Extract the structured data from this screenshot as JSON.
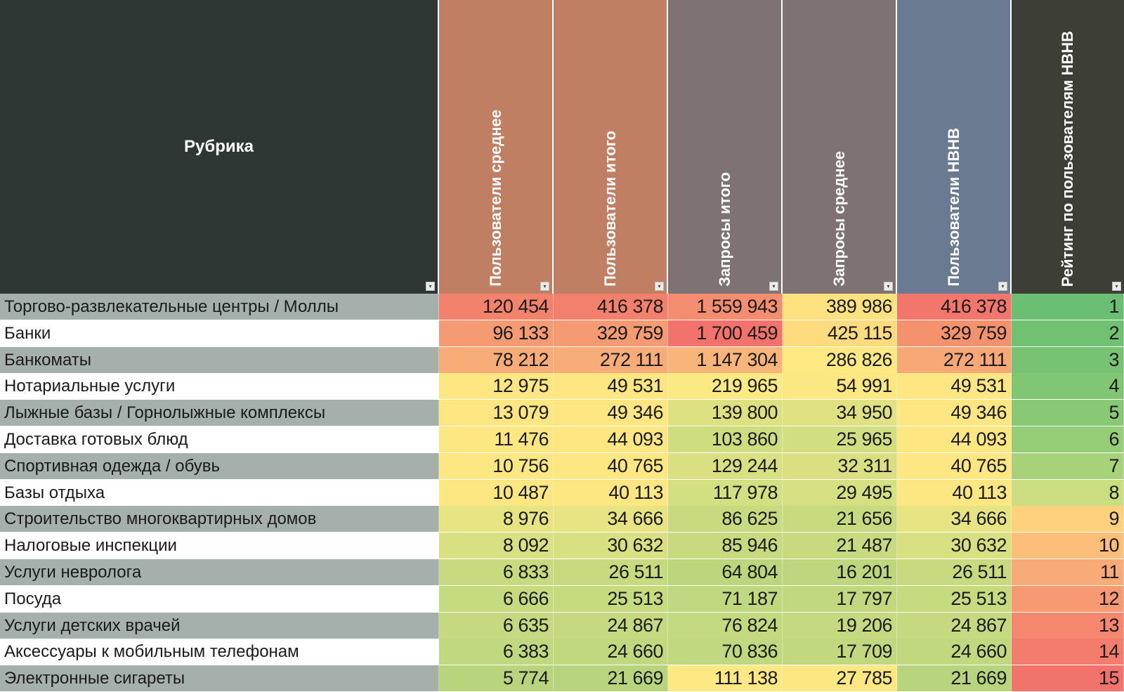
{
  "header": {
    "rubric": "Рубрика",
    "columns": [
      "Пользователи среднее",
      "Пользователи итого",
      "Запросы итого",
      "Запросы среднее",
      "Пользователи НВНВ",
      "Рейтинг по пользователям НВНВ"
    ]
  },
  "colors": {
    "header_first": "#2f3735",
    "header_cols": [
      "#c07e63",
      "#c07e63",
      "#7e7275",
      "#7e7275",
      "#6a7b91",
      "#3d3f36"
    ],
    "row_name_odd": "#a5b0ac",
    "row_name_even": "#ffffff"
  },
  "rows": [
    {
      "name": "Торгово-развлекательные центры / Моллы",
      "values": [
        "120 454",
        "416 378",
        "1 559 943",
        "389 986",
        "416 378",
        "1"
      ],
      "colors": [
        "#f3826d",
        "#f3806c",
        "#f58d70",
        "#fde27f",
        "#f2766c",
        "#6bbf73"
      ]
    },
    {
      "name": "Банки",
      "values": [
        "96 133",
        "329 759",
        "1 700 459",
        "425 115",
        "329 759",
        "2"
      ],
      "colors": [
        "#f59b73",
        "#f59b74",
        "#f2736b",
        "#fddb7e",
        "#f4926e",
        "#71c172"
      ]
    },
    {
      "name": "Банкоматы",
      "values": [
        "78 212",
        "272 111",
        "1 147 304",
        "286 826",
        "272 111",
        "3"
      ],
      "colors": [
        "#f8ad78",
        "#f8ac78",
        "#f9b47a",
        "#fee982",
        "#f8a776",
        "#78c373"
      ]
    },
    {
      "name": "Нотариальные услуги",
      "values": [
        "12 975",
        "49 531",
        "219 965",
        "54 991",
        "49 531",
        "4"
      ],
      "colors": [
        "#fee683",
        "#fee683",
        "#fbea83",
        "#fbe883",
        "#fee683",
        "#80c674"
      ]
    },
    {
      "name": "Лыжные базы / Горнолыжные комплексы",
      "values": [
        "13 079",
        "49 346",
        "139 800",
        "34 950",
        "49 346",
        "5"
      ],
      "colors": [
        "#fee683",
        "#fee683",
        "#dde182",
        "#dfe182",
        "#fee683",
        "#89c975"
      ]
    },
    {
      "name": "Доставка готовых блюд",
      "values": [
        "11 476",
        "44 093",
        "103 860",
        "25 965",
        "44 093",
        "6"
      ],
      "colors": [
        "#fee783",
        "#fee783",
        "#cfdd81",
        "#d2de81",
        "#fee783",
        "#96cd77"
      ]
    },
    {
      "name": "Спортивная одежда / обувь",
      "values": [
        "10 756",
        "40 765",
        "129 244",
        "32 311",
        "40 765",
        "7"
      ],
      "colors": [
        "#fde783",
        "#fde783",
        "#d8e082",
        "#dae082",
        "#fde783",
        "#a8d27a"
      ]
    },
    {
      "name": "Базы отдыха",
      "values": [
        "10 487",
        "40 113",
        "117 978",
        "29 495",
        "40 113",
        "8"
      ],
      "colors": [
        "#fde783",
        "#fde783",
        "#d4df82",
        "#d6df82",
        "#fde783",
        "#cadd80"
      ]
    },
    {
      "name": "Строительство многоквартирных домов",
      "values": [
        "8 976",
        "34 666",
        "86 625",
        "21 656",
        "34 666",
        "9"
      ],
      "colors": [
        "#e6e483",
        "#e6e483",
        "#c8da80",
        "#c8da80",
        "#e6e483",
        "#fdd17d"
      ]
    },
    {
      "name": "Налоговые инспекции",
      "values": [
        "8 092",
        "30 632",
        "85 946",
        "21 487",
        "30 632",
        "10"
      ],
      "colors": [
        "#d9e082",
        "#d9e082",
        "#c7da80",
        "#c7da80",
        "#d9e082",
        "#fcbf7a"
      ]
    },
    {
      "name": "Услуги невролога",
      "values": [
        "6 833",
        "26 511",
        "64 804",
        "16 201",
        "26 511",
        "11"
      ],
      "colors": [
        "#c8da80",
        "#c8da80",
        "#bcd67e",
        "#bed77f",
        "#c8da80",
        "#f9ab77"
      ]
    },
    {
      "name": "Посуда",
      "values": [
        "6 666",
        "25 513",
        "71 187",
        "17 797",
        "25 513",
        "12"
      ],
      "colors": [
        "#c6da80",
        "#c6da80",
        "#c0d87f",
        "#c2d87f",
        "#c6da80",
        "#f79a73"
      ]
    },
    {
      "name": "Услуги детских врачей",
      "values": [
        "6 635",
        "24 867",
        "76 824",
        "19 206",
        "24 867",
        "13"
      ],
      "colors": [
        "#c4d980",
        "#c4d980",
        "#c3d97f",
        "#c5d980",
        "#c4d980",
        "#f5876f"
      ]
    },
    {
      "name": "Аксессуары к мобильным телефонам",
      "values": [
        "6 383",
        "24 660",
        "70 836",
        "17 709",
        "24 660",
        "14"
      ],
      "colors": [
        "#c0d87f",
        "#c2d87f",
        "#c0d87f",
        "#c2d87f",
        "#c2d87f",
        "#f37c6d"
      ]
    },
    {
      "name": "Электронные сигареты",
      "values": [
        "5 774",
        "21 669",
        "111 138",
        "27 785",
        "21 669",
        "15"
      ],
      "colors": [
        "#b8d57e",
        "#b8d57e",
        "#fde883",
        "#fde783",
        "#b8d57e",
        "#f2736b"
      ]
    }
  ]
}
